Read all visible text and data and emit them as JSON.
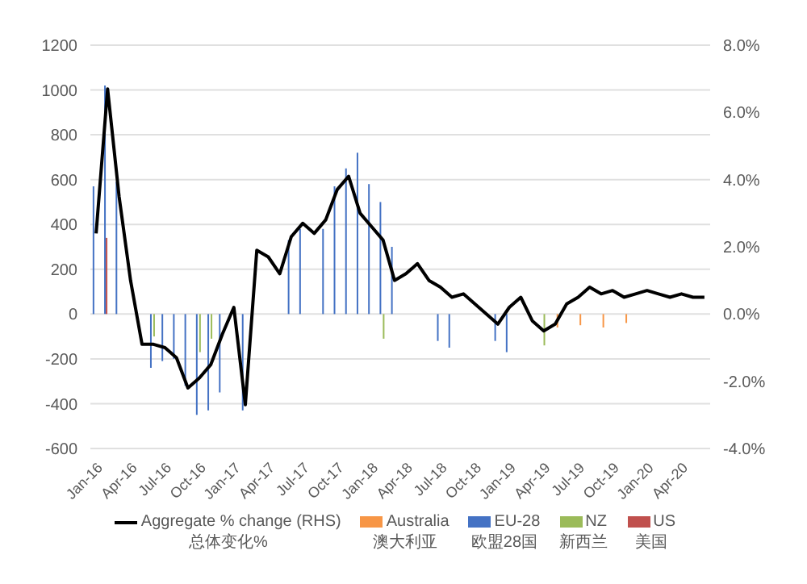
{
  "chart_data": {
    "type": "bar",
    "categories": [
      "Jan-16",
      null,
      null,
      "Apr-16",
      null,
      null,
      "Jul-16",
      null,
      null,
      "Oct-16",
      null,
      null,
      "Jan-17",
      null,
      null,
      "Apr-17",
      null,
      null,
      "Jul-17",
      null,
      null,
      "Oct-17",
      null,
      null,
      "Jan-18",
      null,
      null,
      "Apr-18",
      null,
      null,
      "Jul-18",
      null,
      null,
      "Oct-18",
      null,
      null,
      "Jan-19",
      null,
      null,
      "Apr-19",
      null,
      null,
      "Jul-19",
      null,
      null,
      "Oct-19",
      null,
      null,
      "Jan-20",
      null,
      null,
      "Apr-20",
      null,
      null
    ],
    "series": [
      {
        "name": "EU-28\n欧盟28国",
        "color": "#4472c4",
        "values": [
          570,
          1020,
          590,
          null,
          null,
          -240,
          -210,
          -200,
          -320,
          -450,
          -430,
          -350,
          null,
          -430,
          null,
          null,
          null,
          330,
          380,
          null,
          380,
          570,
          650,
          720,
          580,
          500,
          300,
          null,
          null,
          null,
          -120,
          -150,
          null,
          null,
          null,
          -120,
          -170,
          null,
          null,
          null,
          null,
          null,
          null,
          null,
          null,
          null,
          null,
          null,
          null,
          null,
          null,
          null,
          null,
          null
        ]
      },
      {
        "name": "US\n美国",
        "color": "#c0504d",
        "values": [
          null,
          340,
          null,
          null,
          null,
          null,
          null,
          null,
          null,
          null,
          null,
          null,
          null,
          null,
          null,
          null,
          null,
          null,
          null,
          null,
          null,
          null,
          null,
          null,
          null,
          null,
          null,
          null,
          null,
          null,
          null,
          null,
          null,
          null,
          null,
          null,
          null,
          null,
          null,
          null,
          null,
          null,
          null,
          null,
          null,
          null,
          null,
          null,
          null,
          null,
          null,
          null,
          null,
          null
        ]
      },
      {
        "name": "NZ\n新西兰",
        "color": "#9bbb59",
        "values": [
          null,
          null,
          null,
          null,
          null,
          -100,
          null,
          null,
          null,
          -170,
          -110,
          null,
          null,
          null,
          null,
          null,
          null,
          null,
          null,
          null,
          null,
          null,
          null,
          null,
          null,
          -110,
          null,
          null,
          null,
          null,
          null,
          null,
          null,
          null,
          null,
          null,
          null,
          null,
          null,
          -140,
          null,
          null,
          null,
          null,
          null,
          null,
          null,
          null,
          null,
          null,
          null,
          null,
          null,
          null
        ]
      },
      {
        "name": "Australia\n澳大利亚",
        "color": "#f79646",
        "values": [
          null,
          null,
          null,
          null,
          null,
          null,
          null,
          null,
          null,
          null,
          null,
          null,
          null,
          null,
          null,
          null,
          null,
          null,
          null,
          null,
          null,
          null,
          null,
          null,
          null,
          null,
          null,
          null,
          null,
          null,
          null,
          null,
          null,
          null,
          null,
          null,
          null,
          null,
          null,
          null,
          -60,
          null,
          -50,
          null,
          -60,
          null,
          -40,
          null,
          null,
          null,
          null,
          null,
          null,
          null
        ]
      },
      {
        "name": "Aggregate % change (RHS)\n总体变化%",
        "type": "line",
        "axis": "y2",
        "color": "#000000",
        "values": [
          2.4,
          6.7,
          3.5,
          1.0,
          -0.9,
          -0.9,
          -1.0,
          -1.3,
          -2.2,
          -1.9,
          -1.5,
          -0.6,
          0.2,
          -2.7,
          1.9,
          1.7,
          1.2,
          2.3,
          2.7,
          2.4,
          2.8,
          3.7,
          4.1,
          3.0,
          2.6,
          2.2,
          1.0,
          1.2,
          1.5,
          1.0,
          0.8,
          0.5,
          0.6,
          0.3,
          0.0,
          -0.3,
          0.2,
          0.5,
          -0.2,
          -0.5,
          -0.3,
          0.3,
          0.5,
          0.8,
          0.6,
          0.7,
          0.5,
          0.6,
          0.7,
          0.6,
          0.5,
          0.6,
          0.5,
          0.5
        ]
      }
    ],
    "ylim": [
      -600,
      1200
    ],
    "yticks": [
      -600,
      -400,
      -200,
      0,
      200,
      400,
      600,
      800,
      1000,
      1200
    ],
    "y2lim": [
      -4,
      8
    ],
    "y2ticks": [
      {
        "value": -4,
        "label": "-4.0%"
      },
      {
        "value": -2,
        "label": "-2.0%"
      },
      {
        "value": 0,
        "label": "0.0%"
      },
      {
        "value": 2,
        "label": "2.0%"
      },
      {
        "value": 4,
        "label": "4.0%"
      },
      {
        "value": 6,
        "label": "6.0%"
      },
      {
        "value": 8,
        "label": "8.0%"
      }
    ],
    "grid": "y",
    "legend": "bottom",
    "marker": "none",
    "line_style": "solid"
  }
}
